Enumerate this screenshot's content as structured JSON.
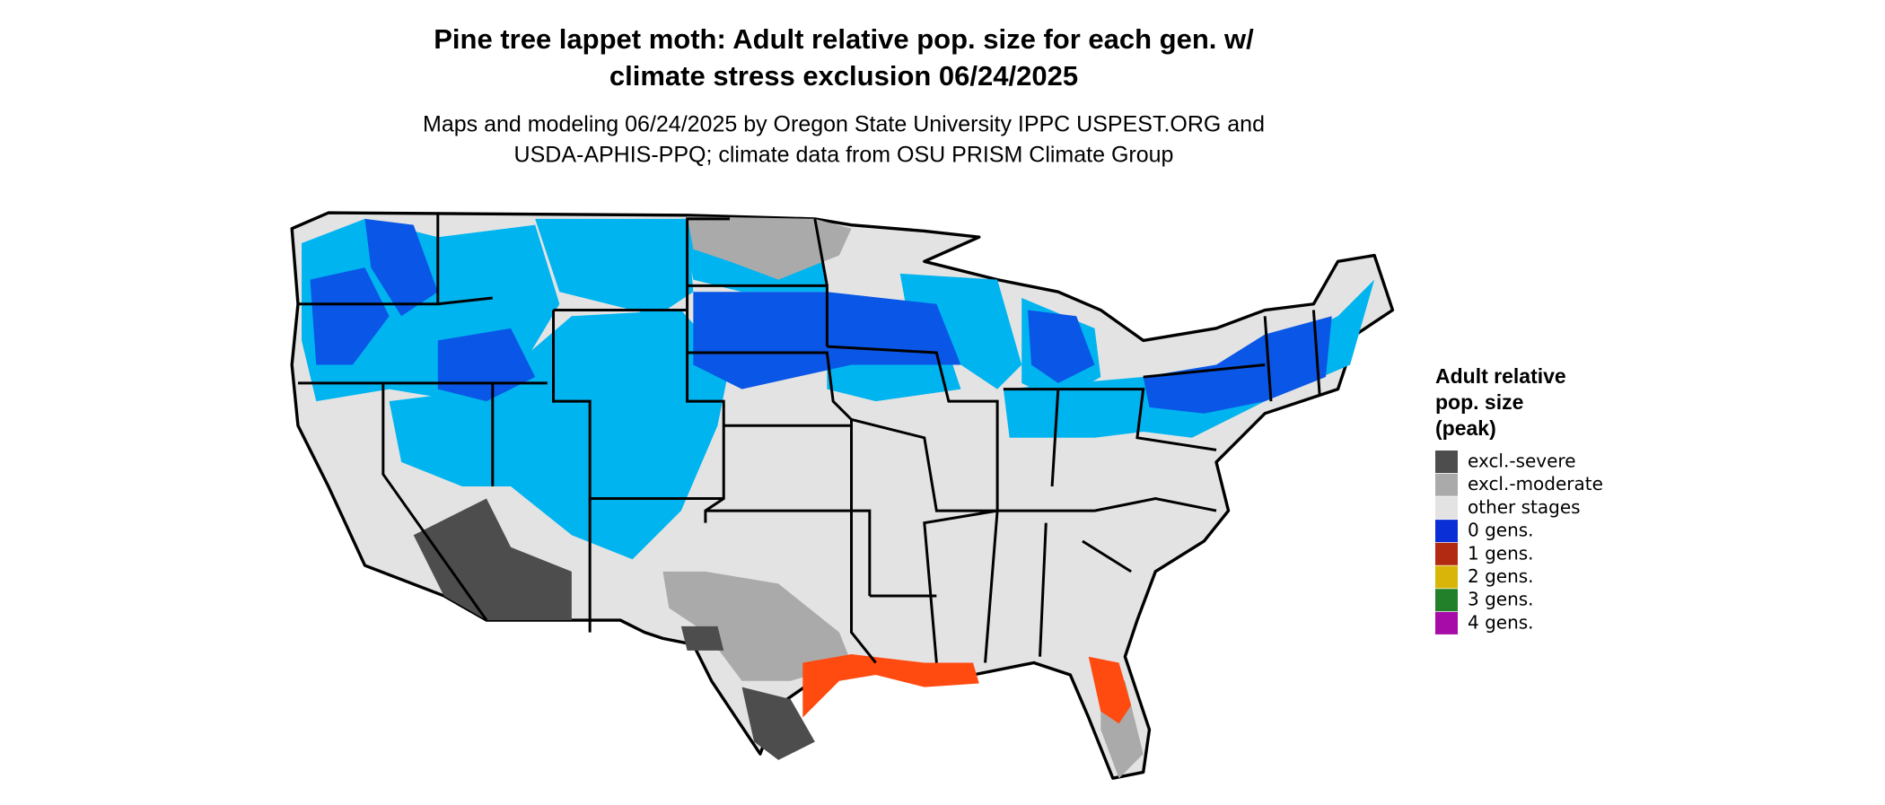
{
  "title": [
    "Pine tree lappet moth: Adult relative pop. size for each gen. w/",
    "climate stress exclusion 06/24/2025"
  ],
  "subtitle": [
    "Maps and modeling 06/24/2025 by Oregon State University IPPC USPEST.ORG and",
    "USDA-APHIS-PPQ; climate data from OSU PRISM Climate Group"
  ],
  "legend": {
    "title": [
      "Adult relative",
      "pop. size",
      "(peak)"
    ],
    "items": [
      {
        "label": "excl.-severe",
        "color": "#4d4d4d"
      },
      {
        "label": "excl.-moderate",
        "color": "#aaaaaa"
      },
      {
        "label": "other stages",
        "color": "#e3e3e3"
      },
      {
        "label": "0 gens.",
        "color": "#0a2fd6"
      },
      {
        "label": "1 gens.",
        "color": "#b22a12"
      },
      {
        "label": "2 gens.",
        "color": "#d9b50a"
      },
      {
        "label": "3 gens.",
        "color": "#23802a"
      },
      {
        "label": "4 gens.",
        "color": "#a80ca8"
      }
    ]
  }
}
